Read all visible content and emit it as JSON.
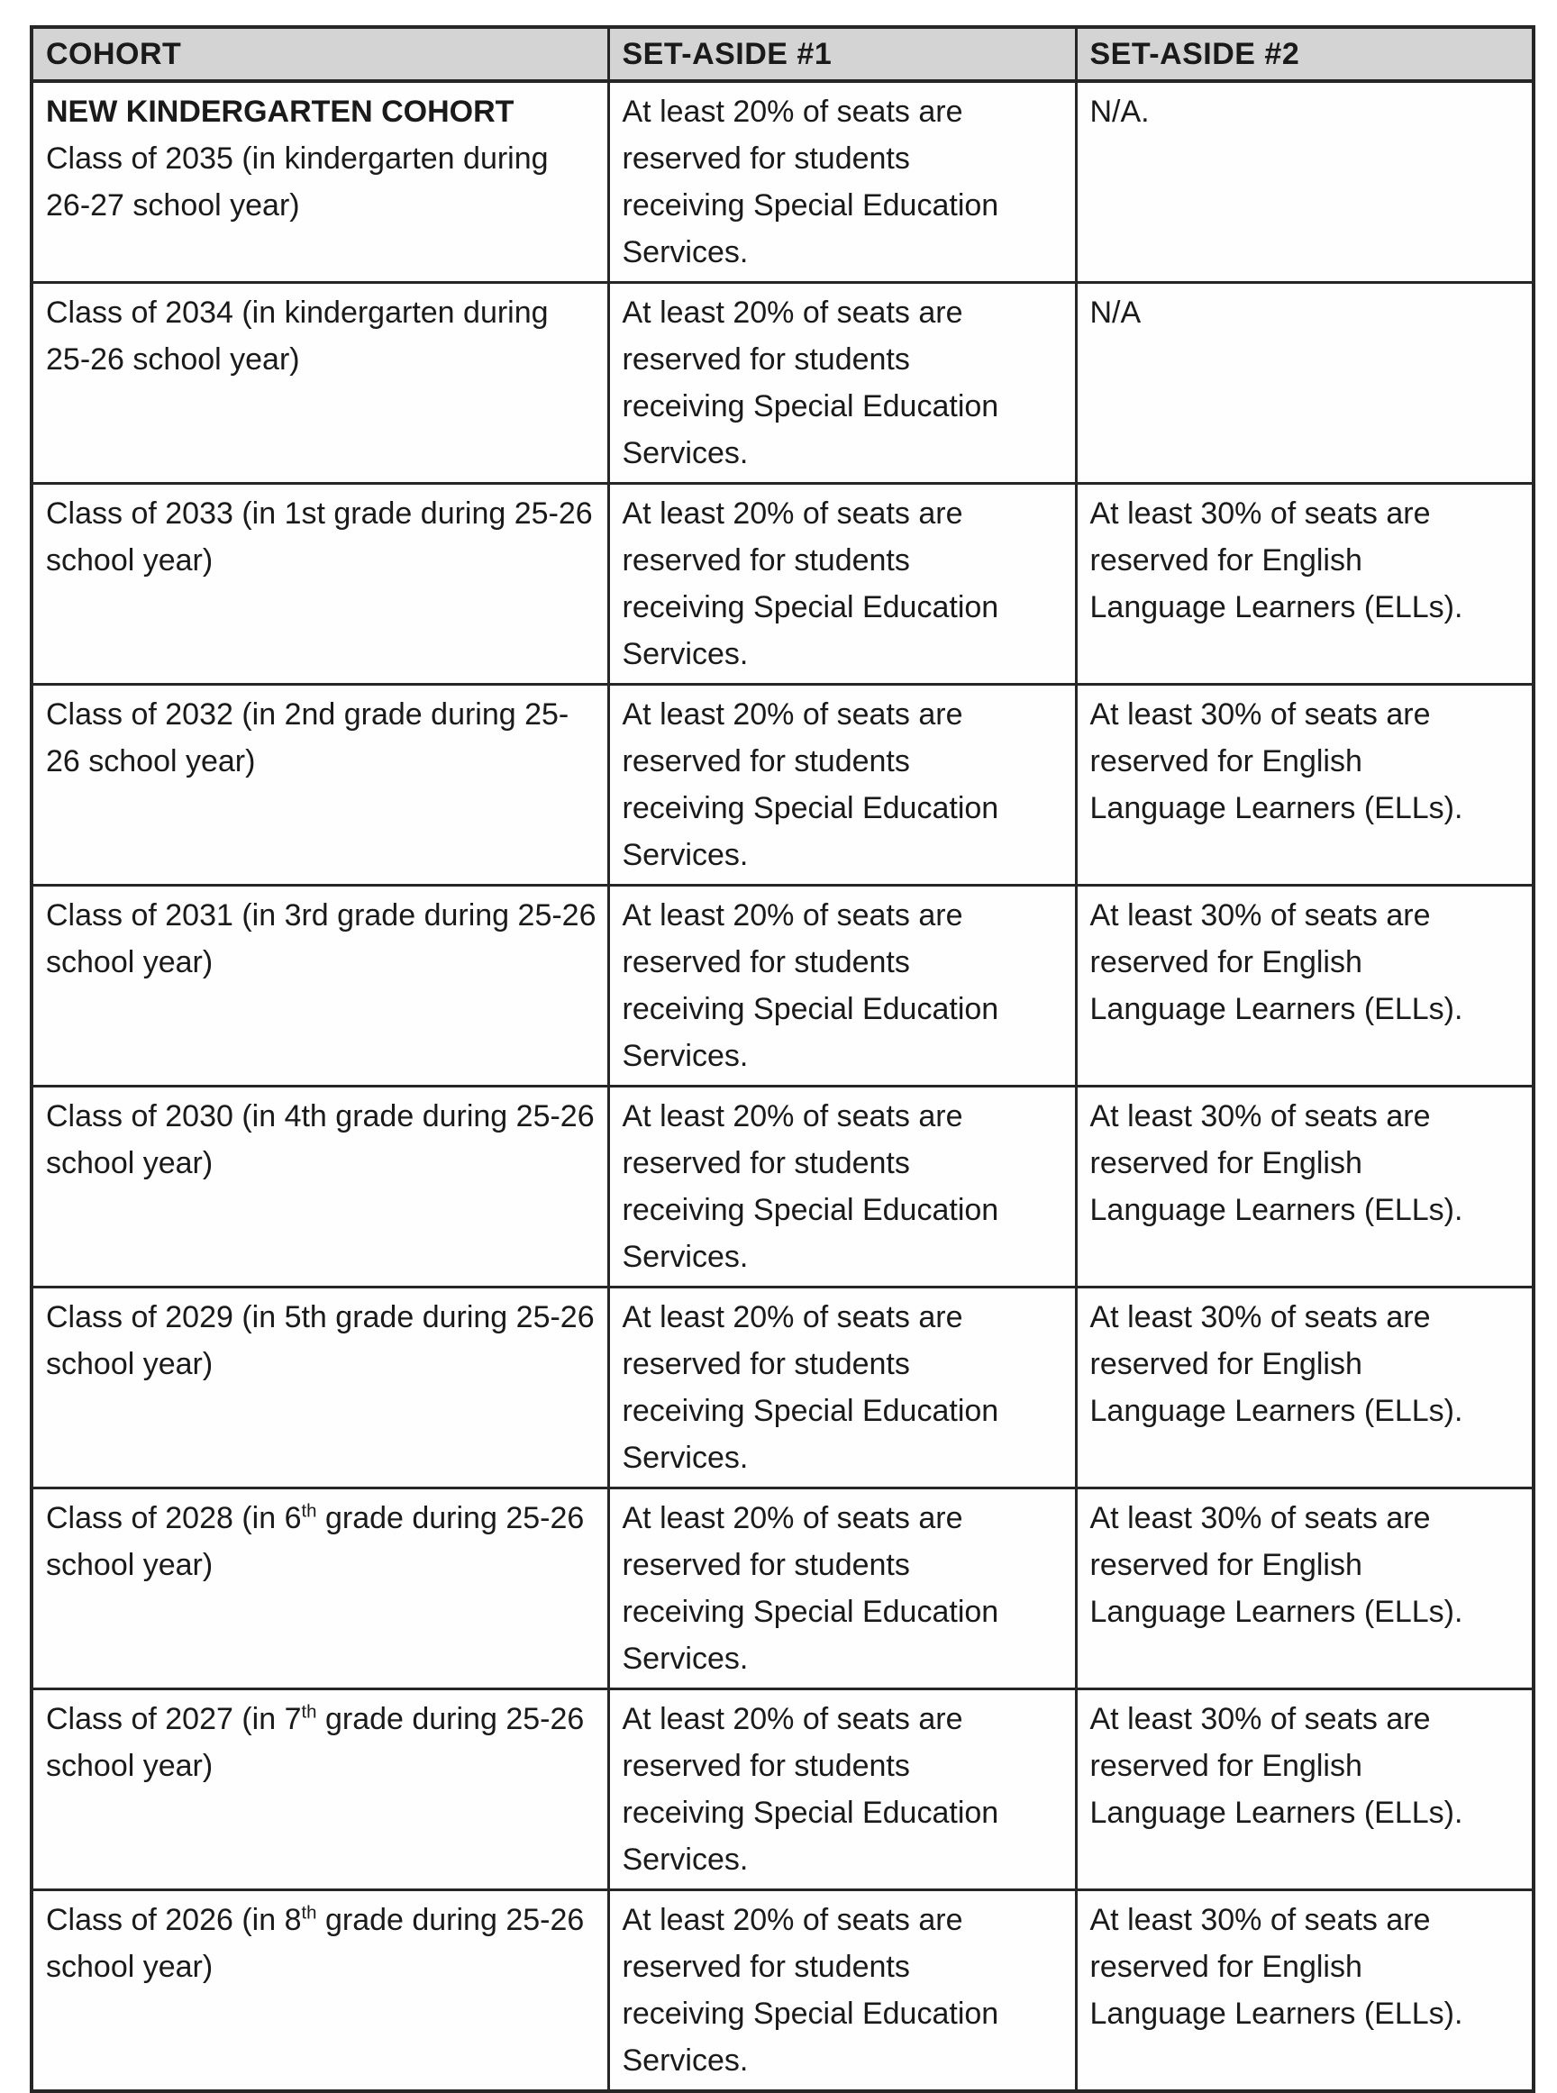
{
  "colors": {
    "header_bg": "#d4d4d4",
    "border": "#262626",
    "text": "#1a1a1a"
  },
  "table": {
    "headers": {
      "cohort": "COHORT",
      "set_aside_1": "SET-ASIDE #1",
      "set_aside_2": "SET-ASIDE #2"
    },
    "rows": [
      {
        "cohort_title": "NEW KINDERGARTEN COHORT",
        "cohort_pre": "Class of 2035 (in kindergarten during 26-27 school year)",
        "cohort_sup": "",
        "cohort_post": "",
        "set_aside_1": "At least 20% of seats are reserved for students receiving Special Education Services.",
        "set_aside_2": "N/A."
      },
      {
        "cohort_pre": "Class of 2034 (in kindergarten during 25-26 school year)",
        "cohort_sup": "",
        "cohort_post": "",
        "set_aside_1": "At least 20% of seats are reserved for students receiving Special Education Services.",
        "set_aside_2": "N/A"
      },
      {
        "cohort_pre": "Class of 2033 (in 1st grade during 25-26 school year)",
        "cohort_sup": "",
        "cohort_post": "",
        "set_aside_1": "At least 20% of seats are reserved for students receiving Special Education Services.",
        "set_aside_2": "At least 30% of seats are reserved for English Language Learners (ELLs)."
      },
      {
        "cohort_pre": "Class of 2032 (in 2nd grade during 25-26 school year)",
        "cohort_sup": "",
        "cohort_post": "",
        "set_aside_1": "At least 20% of seats are reserved for students receiving Special Education Services.",
        "set_aside_2": "At least 30% of seats are reserved for English Language Learners (ELLs)."
      },
      {
        "cohort_pre": "Class of 2031 (in 3rd grade during 25-26 school year)",
        "cohort_sup": "",
        "cohort_post": "",
        "set_aside_1": "At least 20% of seats are reserved for students receiving Special Education Services.",
        "set_aside_2": "At least 30% of seats are reserved for English Language Learners (ELLs)."
      },
      {
        "cohort_pre": "Class of 2030 (in 4th grade during 25-26 school year)",
        "cohort_sup": "",
        "cohort_post": "",
        "set_aside_1": "At least 20% of seats are reserved for students receiving Special Education Services.",
        "set_aside_2": "At least 30% of seats are reserved for English Language Learners (ELLs)."
      },
      {
        "cohort_pre": "Class of 2029 (in 5th grade during 25-26 school year)",
        "cohort_sup": "",
        "cohort_post": "",
        "set_aside_1": "At least 20% of seats are reserved for students receiving Special Education Services.",
        "set_aside_2": "At least 30% of seats are reserved for English Language Learners (ELLs)."
      },
      {
        "cohort_pre": "Class of 2028 (in 6",
        "cohort_sup": "th",
        "cohort_post": " grade during 25-26 school year)",
        "set_aside_1": "At least 20% of seats are reserved for students receiving Special Education Services.",
        "set_aside_2": "At least 30% of seats are reserved for English Language Learners (ELLs)."
      },
      {
        "cohort_pre": "Class of 2027 (in 7",
        "cohort_sup": "th",
        "cohort_post": " grade during 25-26 school year)",
        "set_aside_1": "At least 20% of seats are reserved for students receiving Special Education Services.",
        "set_aside_2": "At least 30% of seats are reserved for English Language Learners (ELLs)."
      },
      {
        "cohort_pre": "Class of 2026 (in 8",
        "cohort_sup": "th",
        "cohort_post": " grade during 25-26 school year)",
        "set_aside_1": "At least 20% of seats are reserved for students receiving Special Education Services.",
        "set_aside_2": "At least 30% of seats are reserved for English Language Learners (ELLs)."
      }
    ]
  }
}
